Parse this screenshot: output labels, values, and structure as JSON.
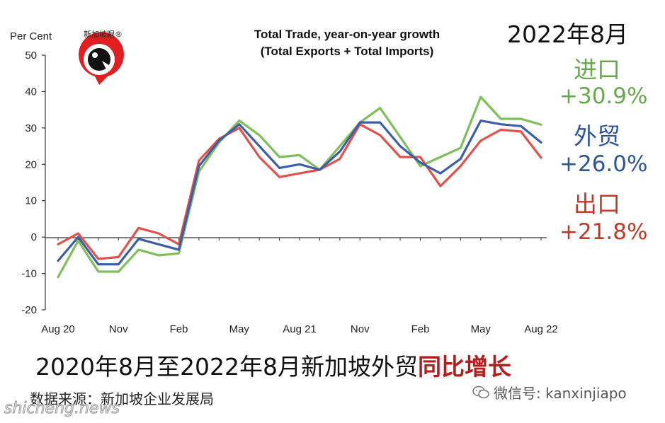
{
  "logo_text": "新加坡眼®",
  "annotations": {
    "date": "2022年8月",
    "imports_label": "进口",
    "imports_value": "+30.9%",
    "total_label": "外贸",
    "total_value": "+26.0%",
    "exports_label": "出口",
    "exports_value": "+21.8%"
  },
  "caption": {
    "main": "2020年8月至2022年8月新加坡外贸",
    "highlight": "同比增长"
  },
  "source": "数据来源：新加坡企业发展局",
  "wechat": "微信号: kanxinjiapo",
  "watermark": "shicheng.news",
  "colors": {
    "imports": "#7fbf5a",
    "total": "#3a5fa8",
    "exports": "#e0514a"
  },
  "chart_data": {
    "type": "line",
    "title": "Total Trade, year-on-year growth",
    "subtitle": "(Total Exports + Total Imports)",
    "ylabel": "Per Cent",
    "xlabel": "",
    "ylim": [
      -20,
      50
    ],
    "yticks": [
      50,
      40,
      30,
      20,
      10,
      0,
      -10,
      -20
    ],
    "grid": false,
    "x": [
      "Aug 20",
      "Sep 20",
      "Oct 20",
      "Nov 20",
      "Dec 20",
      "Jan 21",
      "Feb 21",
      "Mar 21",
      "Apr 21",
      "May 21",
      "Jun 21",
      "Jul 21",
      "Aug 21",
      "Sep 21",
      "Oct 21",
      "Nov 21",
      "Dec 21",
      "Jan 22",
      "Feb 22",
      "Mar 22",
      "Apr 22",
      "May 22",
      "Jun 22",
      "Jul 22",
      "Aug 22"
    ],
    "xtick_labels": [
      {
        "index": 0,
        "label": "Aug 20"
      },
      {
        "index": 3,
        "label": "Nov"
      },
      {
        "index": 6,
        "label": "Feb"
      },
      {
        "index": 9,
        "label": "May"
      },
      {
        "index": 12,
        "label": "Aug 21"
      },
      {
        "index": 15,
        "label": "Nov"
      },
      {
        "index": 18,
        "label": "Feb"
      },
      {
        "index": 21,
        "label": "May"
      },
      {
        "index": 24,
        "label": "Aug 22"
      }
    ],
    "series": [
      {
        "key": "imports",
        "values": [
          -11,
          -1,
          -9.5,
          -9.5,
          -3.5,
          -5,
          -4.5,
          18,
          26,
          32,
          28,
          22,
          22.5,
          18.5,
          25,
          31.5,
          35.5,
          27.5,
          19.5,
          22,
          24.5,
          38.5,
          32.5,
          32.5,
          30.9
        ]
      },
      {
        "key": "exports",
        "values": [
          -2,
          1,
          -6,
          -5.5,
          2.5,
          1,
          -2,
          21,
          27,
          30,
          22,
          16.5,
          17.5,
          18.5,
          21.5,
          31,
          28,
          22,
          22,
          14,
          19.5,
          26.5,
          29.5,
          29,
          21.8
        ]
      },
      {
        "key": "total",
        "values": [
          -6.5,
          0,
          -7.5,
          -7.5,
          -0.5,
          -2,
          -3.5,
          19.5,
          26.5,
          31,
          25,
          19,
          20,
          18.5,
          23.5,
          31.5,
          31.5,
          25,
          20.5,
          17.5,
          21.5,
          32,
          31,
          30.5,
          26
        ]
      }
    ]
  }
}
